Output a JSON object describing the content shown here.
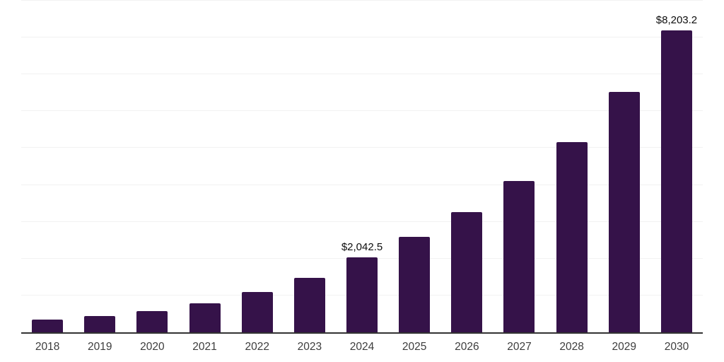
{
  "chart_data": {
    "type": "bar",
    "title": "",
    "xlabel": "",
    "ylabel": "",
    "categories": [
      "2018",
      "2019",
      "2020",
      "2021",
      "2022",
      "2023",
      "2024",
      "2025",
      "2026",
      "2027",
      "2028",
      "2029",
      "2030"
    ],
    "values": [
      340,
      435,
      580,
      795,
      1100,
      1485,
      2042.5,
      2590,
      3270,
      4100,
      5165,
      6525,
      8203.2
    ],
    "data_labels": {
      "2024": "$2,042.5",
      "2030": "$8,203.2"
    },
    "ylim": [
      0,
      9000
    ],
    "gridline_step": 1000,
    "grid": "horizontal-only",
    "y_tick_labels_shown": false,
    "legend": "none",
    "colors": {
      "bar": "#351249",
      "gridline": "#f2f2f2",
      "axis_line": "#333333",
      "tick_label": "#3d3d3d",
      "value_label": "#0d0d0d",
      "background": "#ffffff"
    }
  }
}
